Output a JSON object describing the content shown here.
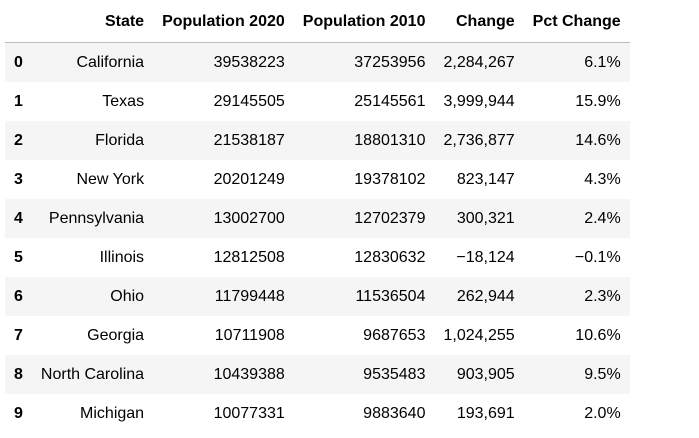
{
  "table": {
    "columns": [
      "",
      "State",
      "Population 2020",
      "Population 2010",
      "Change",
      "Pct Change"
    ],
    "rows": [
      [
        "0",
        "California",
        "39538223",
        "37253956",
        "2,284,267",
        "6.1%"
      ],
      [
        "1",
        "Texas",
        "29145505",
        "25145561",
        "3,999,944",
        "15.9%"
      ],
      [
        "2",
        "Florida",
        "21538187",
        "18801310",
        "2,736,877",
        "14.6%"
      ],
      [
        "3",
        "New York",
        "20201249",
        "19378102",
        "823,147",
        "4.3%"
      ],
      [
        "4",
        "Pennsylvania",
        "13002700",
        "12702379",
        "300,321",
        "2.4%"
      ],
      [
        "5",
        "Illinois",
        "12812508",
        "12830632",
        "−18,124",
        "−0.1%"
      ],
      [
        "6",
        "Ohio",
        "11799448",
        "11536504",
        "262,944",
        "2.3%"
      ],
      [
        "7",
        "Georgia",
        "10711908",
        "9687653",
        "1,024,255",
        "10.6%"
      ],
      [
        "8",
        "North Carolina",
        "10439388",
        "9535483",
        "903,905",
        "9.5%"
      ],
      [
        "9",
        "Michigan",
        "10077331",
        "9883640",
        "193,691",
        "2.0%"
      ]
    ]
  }
}
